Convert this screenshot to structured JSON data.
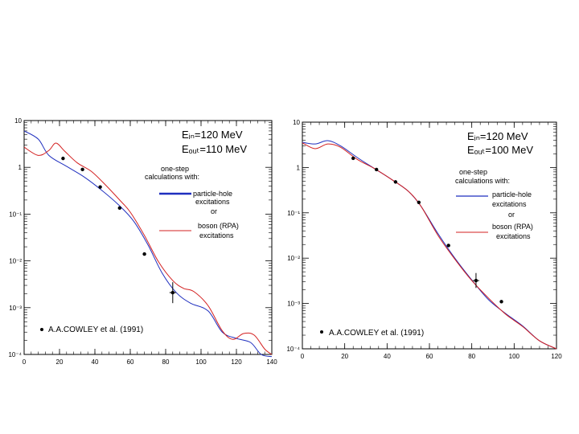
{
  "chart_data": [
    {
      "type": "line",
      "y_scale": "log",
      "xlim": [
        0,
        140
      ],
      "ylim_exponents": [
        -4,
        1
      ],
      "x_ticks": [
        "0",
        "20",
        "40",
        "60",
        "80",
        "100",
        "120",
        "140"
      ],
      "y_ticks": [
        "10",
        "1",
        "10⁻¹",
        "10⁻²",
        "10⁻³",
        "10⁻⁴"
      ],
      "energy_in": "Eᵢₙ=120 MeV",
      "energy_out": "Eₒᵤₜ=110 MeV",
      "legend": {
        "heading1": "one-step",
        "heading2": "calculations with:",
        "blue1": "particle-hole",
        "blue2": "excitations",
        "or": "or",
        "red1": "boson (RPA)",
        "red2": "excitations"
      },
      "data_label": "A.A.COWLEY et al. (1991)",
      "series": [
        {
          "name": "particle-hole excitations",
          "color": "#1f2fbf",
          "points": [
            [
              0,
              6
            ],
            [
              8,
              4
            ],
            [
              14,
              1.8
            ],
            [
              24,
              1.05
            ],
            [
              34,
              0.62
            ],
            [
              44,
              0.32
            ],
            [
              54,
              0.15
            ],
            [
              62,
              0.07
            ],
            [
              70,
              0.022
            ],
            [
              78,
              0.0055
            ],
            [
              86,
              0.0021
            ],
            [
              94,
              0.00125
            ],
            [
              104,
              0.00085
            ],
            [
              112,
              0.0003
            ],
            [
              120,
              0.00022
            ],
            [
              128,
              0.00018
            ],
            [
              134,
              0.0001
            ],
            [
              140,
              9e-05
            ]
          ]
        },
        {
          "name": "boson (RPA) excitations",
          "color": "#d32020",
          "points": [
            [
              0,
              2.7
            ],
            [
              8,
              1.8
            ],
            [
              14,
              2.3
            ],
            [
              18,
              3.3
            ],
            [
              23,
              2.2
            ],
            [
              30,
              1.25
            ],
            [
              38,
              0.82
            ],
            [
              46,
              0.42
            ],
            [
              54,
              0.2
            ],
            [
              60,
              0.11
            ],
            [
              68,
              0.035
            ],
            [
              76,
              0.0095
            ],
            [
              84,
              0.0038
            ],
            [
              90,
              0.0026
            ],
            [
              96,
              0.0022
            ],
            [
              104,
              0.0011
            ],
            [
              112,
              0.00032
            ],
            [
              118,
              0.00021
            ],
            [
              124,
              0.00028
            ],
            [
              130,
              0.00026
            ],
            [
              136,
              0.00013
            ],
            [
              140,
              0.0001
            ]
          ]
        }
      ],
      "data_points": [
        {
          "x": 22,
          "y": 1.55,
          "err": 0
        },
        {
          "x": 33,
          "y": 0.9,
          "err": 0
        },
        {
          "x": 43,
          "y": 0.38,
          "err": 0
        },
        {
          "x": 54,
          "y": 0.135,
          "err": 0
        },
        {
          "x": 68,
          "y": 0.014,
          "err": 0
        },
        {
          "x": 84,
          "y": 0.0021,
          "err_lo": 0.00125,
          "err_hi": 0.0035
        }
      ]
    },
    {
      "type": "line",
      "y_scale": "log",
      "xlim": [
        0,
        120
      ],
      "ylim_exponents": [
        -4,
        1
      ],
      "x_ticks": [
        "0",
        "20",
        "40",
        "60",
        "80",
        "100",
        "120"
      ],
      "y_ticks": [
        "10",
        "1",
        "10⁻¹",
        "10⁻²",
        "10⁻³",
        "10⁻⁴"
      ],
      "energy_in": "Eᵢₙ=120 MeV",
      "energy_out": "Eₒᵤₜ=100 MeV",
      "legend": {
        "heading1": "one-step",
        "heading2": "calculations with:",
        "blue1": "particle-hole",
        "blue2": "excitations",
        "or": "or",
        "red1": "boson (RPA)",
        "red2": "excitations"
      },
      "data_label": "A.A.COWLEY et al. (1991)",
      "series": [
        {
          "name": "particle-hole excitations",
          "color": "#1f2fbf",
          "points": [
            [
              0,
              3.6
            ],
            [
              6,
              3.3
            ],
            [
              12,
              3.9
            ],
            [
              18,
              3
            ],
            [
              26,
              1.65
            ],
            [
              34,
              0.95
            ],
            [
              42,
              0.55
            ],
            [
              50,
              0.3
            ],
            [
              56,
              0.14
            ],
            [
              64,
              0.035
            ],
            [
              72,
              0.01
            ],
            [
              80,
              0.0033
            ],
            [
              88,
              0.0012
            ],
            [
              96,
              0.0006
            ],
            [
              104,
              0.00032
            ],
            [
              112,
              0.00015
            ],
            [
              120,
              0.0001
            ]
          ]
        },
        {
          "name": "boson (RPA) excitations",
          "color": "#d32020",
          "points": [
            [
              0,
              3.5
            ],
            [
              6,
              2.6
            ],
            [
              12,
              3.3
            ],
            [
              18,
              2.8
            ],
            [
              26,
              1.5
            ],
            [
              34,
              0.95
            ],
            [
              42,
              0.55
            ],
            [
              50,
              0.3
            ],
            [
              56,
              0.14
            ],
            [
              64,
              0.032
            ],
            [
              72,
              0.0095
            ],
            [
              80,
              0.0032
            ],
            [
              88,
              0.0013
            ],
            [
              96,
              0.00058
            ],
            [
              104,
              0.00031
            ],
            [
              112,
              0.00015
            ],
            [
              120,
              0.0001
            ]
          ]
        }
      ],
      "data_points": [
        {
          "x": 24,
          "y": 1.6,
          "err": 0
        },
        {
          "x": 35,
          "y": 0.9,
          "err": 0
        },
        {
          "x": 44,
          "y": 0.48,
          "err": 0
        },
        {
          "x": 55,
          "y": 0.17,
          "err": 0
        },
        {
          "x": 69,
          "y": 0.019,
          "err": 0
        },
        {
          "x": 82,
          "y": 0.0032,
          "err_lo": 0.0022,
          "err_hi": 0.0047
        },
        {
          "x": 94,
          "y": 0.0011,
          "err": 0
        }
      ]
    }
  ]
}
